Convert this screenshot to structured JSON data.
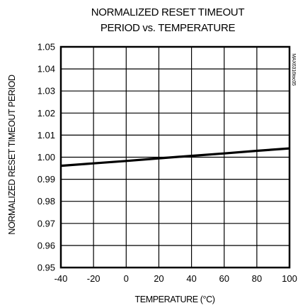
{
  "chart_data": {
    "type": "line",
    "title": "NORMALIZED RESET TIMEOUT",
    "subtitle": "PERIOD vs. TEMPERATURE",
    "xlabel": "TEMPERATURE (°C)",
    "ylabel": "NORMALIZED RESET TIMEOUT PERIOD",
    "side_id": "MAX6316toc05",
    "xlim": [
      -40,
      100
    ],
    "ylim": [
      0.95,
      1.05
    ],
    "x_ticks": [
      -40,
      -20,
      0,
      20,
      40,
      60,
      80,
      100
    ],
    "x_tick_labels": [
      "-40",
      "-20",
      "0",
      "20",
      "40",
      "60",
      "80",
      "100"
    ],
    "y_ticks": [
      0.95,
      0.96,
      0.97,
      0.98,
      0.99,
      1.0,
      1.01,
      1.02,
      1.03,
      1.04,
      1.05
    ],
    "y_tick_labels": [
      "0.95",
      "0.96",
      "0.97",
      "0.98",
      "0.99",
      "1.00",
      "1.01",
      "1.02",
      "1.03",
      "1.04",
      "1.05"
    ],
    "grid": true,
    "legend": "none",
    "series": [
      {
        "x": [
          -40,
          -20,
          0,
          20,
          40,
          60,
          80,
          100
        ],
        "y": [
          0.9961,
          0.9972,
          0.9983,
          0.9995,
          1.0006,
          1.0017,
          1.0029,
          1.004
        ]
      }
    ],
    "colors": {
      "line": "#000000",
      "grid": "#000000",
      "frame": "#000000"
    }
  }
}
